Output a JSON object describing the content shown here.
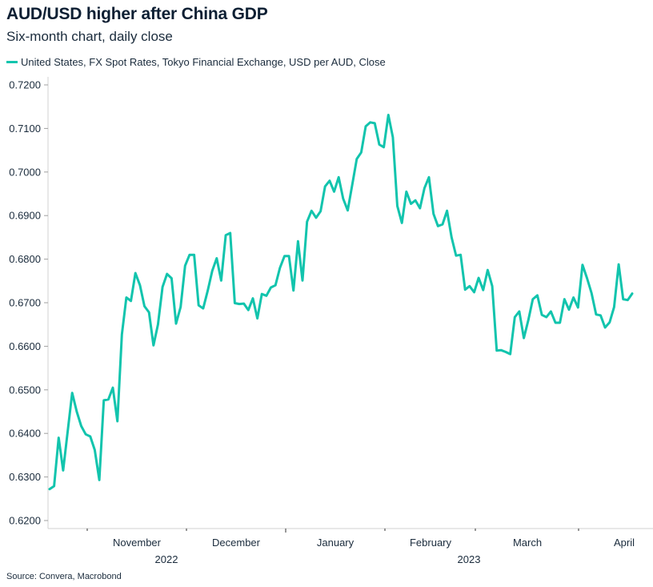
{
  "chart_data": {
    "type": "line",
    "title": "AUD/USD higher after China GDP",
    "subtitle": "Six-month chart, daily close",
    "xlabel": "",
    "ylabel": "",
    "ylim": [
      0.62,
      0.72
    ],
    "grid": false,
    "legend_position": "top-left",
    "y_ticks": [
      "0.6200",
      "0.6300",
      "0.6400",
      "0.6500",
      "0.6600",
      "0.6700",
      "0.6800",
      "0.6900",
      "0.7000",
      "0.7100",
      "0.7200"
    ],
    "x_month_labels": [
      "November",
      "December",
      "January",
      "February",
      "March",
      "April"
    ],
    "x_year_labels": [
      "2022",
      "2023"
    ],
    "x_range_days": [
      0,
      128
    ],
    "month_tick_days": [
      8.5,
      19.0,
      29.5,
      40.0,
      49.6,
      60.5
    ],
    "year_tick_day": 29.5,
    "series": [
      {
        "name": "United States, FX Spot Rates, Tokyo Financial Exchange, USD per AUD, Close",
        "color": "#12c4ad",
        "values": [
          0.6272,
          0.6279,
          0.639,
          0.6315,
          0.6405,
          0.6493,
          0.645,
          0.6417,
          0.6398,
          0.6393,
          0.6362,
          0.6293,
          0.6476,
          0.6478,
          0.6505,
          0.6428,
          0.6627,
          0.6712,
          0.6704,
          0.6768,
          0.674,
          0.6692,
          0.6678,
          0.6602,
          0.665,
          0.6736,
          0.6766,
          0.6756,
          0.6652,
          0.669,
          0.6785,
          0.681,
          0.681,
          0.6694,
          0.6687,
          0.6727,
          0.6773,
          0.6802,
          0.6751,
          0.6855,
          0.686,
          0.6699,
          0.6697,
          0.6698,
          0.6683,
          0.671,
          0.6664,
          0.672,
          0.6716,
          0.6735,
          0.674,
          0.678,
          0.6807,
          0.6807,
          0.6728,
          0.6841,
          0.6751,
          0.6886,
          0.6911,
          0.6895,
          0.691,
          0.6967,
          0.698,
          0.6955,
          0.6988,
          0.6939,
          0.6912,
          0.697,
          0.703,
          0.7045,
          0.7105,
          0.7114,
          0.7112,
          0.7063,
          0.7057,
          0.7131,
          0.708,
          0.6922,
          0.6883,
          0.6955,
          0.6927,
          0.6935,
          0.6917,
          0.6963,
          0.6988,
          0.6904,
          0.6876,
          0.688,
          0.6911,
          0.685,
          0.6808,
          0.681,
          0.673,
          0.6738,
          0.6724,
          0.6757,
          0.6729,
          0.6775,
          0.6738,
          0.659,
          0.6591,
          0.6587,
          0.6582,
          0.6667,
          0.668,
          0.6619,
          0.666,
          0.6708,
          0.6717,
          0.6672,
          0.6667,
          0.668,
          0.6654,
          0.6654,
          0.6708,
          0.6684,
          0.6712,
          0.6689,
          0.6787,
          0.6756,
          0.6722,
          0.6673,
          0.6671,
          0.6643,
          0.6655,
          0.669,
          0.6788,
          0.6708,
          0.6706,
          0.6721
        ]
      }
    ]
  },
  "source": "Source: Convera, Macrobond"
}
